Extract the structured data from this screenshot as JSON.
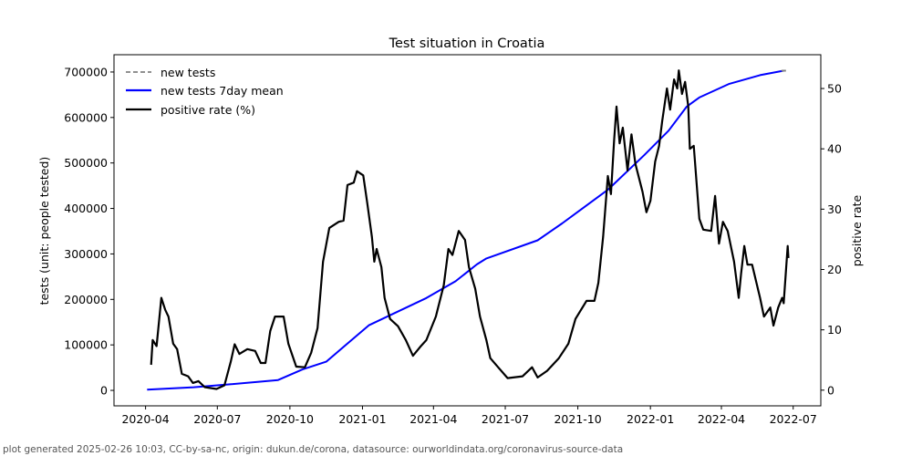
{
  "chart_data": {
    "type": "line",
    "title": "Test situation in Croatia",
    "xlabel": "",
    "ylabel": "tests (unit: people tested)",
    "ylabel_right": "positive rate",
    "x_origin": "2020-04-01",
    "xlim": [
      -40,
      856
    ],
    "ylim": [
      -34000,
      738000
    ],
    "ylim_right": [
      -2.6,
      55.6
    ],
    "x_ticks": [
      {
        "day": 0,
        "label": "2020-04"
      },
      {
        "day": 91,
        "label": "2020-07"
      },
      {
        "day": 183,
        "label": "2020-10"
      },
      {
        "day": 275,
        "label": "2021-01"
      },
      {
        "day": 365,
        "label": "2021-04"
      },
      {
        "day": 456,
        "label": "2021-07"
      },
      {
        "day": 548,
        "label": "2021-10"
      },
      {
        "day": 640,
        "label": "2022-01"
      },
      {
        "day": 730,
        "label": "2022-04"
      },
      {
        "day": 821,
        "label": "2022-07"
      }
    ],
    "y_ticks": [
      "0",
      "100000",
      "200000",
      "300000",
      "400000",
      "500000",
      "600000",
      "700000"
    ],
    "y_ticks_right": [
      "0",
      "10",
      "20",
      "30",
      "40",
      "50"
    ],
    "legend_position": "top-left",
    "grid": false,
    "series": [
      {
        "name": "new tests",
        "axis": "left",
        "color": "#808080",
        "style": "dashed",
        "points": [
          [
            806,
            703000
          ],
          [
            812,
            703000
          ]
        ]
      },
      {
        "name": "new tests 7day mean",
        "axis": "left",
        "color": "#0000ff",
        "style": "solid",
        "points": [
          [
            2,
            1400
          ],
          [
            61,
            7000
          ],
          [
            102,
            12600
          ],
          [
            168,
            22700
          ],
          [
            199,
            46000
          ],
          [
            229,
            63000
          ],
          [
            283,
            143000
          ],
          [
            356,
            203000
          ],
          [
            393,
            240000
          ],
          [
            420,
            277000
          ],
          [
            432,
            290000
          ],
          [
            497,
            330000
          ],
          [
            528,
            367000
          ],
          [
            586,
            441000
          ],
          [
            632,
            517000
          ],
          [
            663,
            571000
          ],
          [
            686,
            624000
          ],
          [
            702,
            644000
          ],
          [
            740,
            674000
          ],
          [
            779,
            693000
          ],
          [
            809,
            703000
          ]
        ]
      },
      {
        "name": "positive rate (%)",
        "axis": "right",
        "color": "#000000",
        "style": "solid",
        "points": [
          [
            7,
            4.2
          ],
          [
            9,
            8.3
          ],
          [
            14,
            7.3
          ],
          [
            17,
            11.3
          ],
          [
            20,
            15.3
          ],
          [
            25,
            13.3
          ],
          [
            29,
            12.2
          ],
          [
            35,
            7.7
          ],
          [
            40,
            6.8
          ],
          [
            46,
            2.7
          ],
          [
            54,
            2.3
          ],
          [
            60,
            1.2
          ],
          [
            67,
            1.5
          ],
          [
            75,
            0.5
          ],
          [
            90,
            0.2
          ],
          [
            100,
            0.8
          ],
          [
            108,
            4.7
          ],
          [
            113,
            7.6
          ],
          [
            119,
            6.0
          ],
          [
            129,
            6.8
          ],
          [
            139,
            6.5
          ],
          [
            146,
            4.5
          ],
          [
            152,
            4.5
          ],
          [
            158,
            9.8
          ],
          [
            164,
            12.2
          ],
          [
            175,
            12.2
          ],
          [
            181,
            7.7
          ],
          [
            191,
            3.9
          ],
          [
            202,
            3.8
          ],
          [
            210,
            6.2
          ],
          [
            218,
            10.3
          ],
          [
            225,
            21.3
          ],
          [
            233,
            26.9
          ],
          [
            245,
            27.9
          ],
          [
            251,
            28.1
          ],
          [
            256,
            34.0
          ],
          [
            264,
            34.4
          ],
          [
            268,
            36.3
          ],
          [
            276,
            35.6
          ],
          [
            281,
            31.0
          ],
          [
            287,
            25.4
          ],
          [
            290,
            21.3
          ],
          [
            293,
            23.4
          ],
          [
            299,
            20.4
          ],
          [
            303,
            15.3
          ],
          [
            310,
            11.8
          ],
          [
            320,
            10.6
          ],
          [
            330,
            8.3
          ],
          [
            339,
            5.7
          ],
          [
            349,
            7.3
          ],
          [
            356,
            8.3
          ],
          [
            368,
            12.2
          ],
          [
            378,
            17.4
          ],
          [
            384,
            23.4
          ],
          [
            389,
            22.4
          ],
          [
            397,
            26.4
          ],
          [
            405,
            24.9
          ],
          [
            410,
            20.4
          ],
          [
            418,
            16.8
          ],
          [
            424,
            12.2
          ],
          [
            432,
            8.3
          ],
          [
            437,
            5.3
          ],
          [
            447,
            3.8
          ],
          [
            459,
            2.0
          ],
          [
            478,
            2.3
          ],
          [
            490,
            3.8
          ],
          [
            497,
            2.1
          ],
          [
            509,
            3.2
          ],
          [
            524,
            5.3
          ],
          [
            536,
            7.7
          ],
          [
            545,
            11.8
          ],
          [
            559,
            14.8
          ],
          [
            569,
            14.8
          ],
          [
            574,
            17.8
          ],
          [
            580,
            25.4
          ],
          [
            586,
            35.5
          ],
          [
            590,
            32.5
          ],
          [
            594,
            41.5
          ],
          [
            597,
            47.0
          ],
          [
            601,
            40.9
          ],
          [
            605,
            43.5
          ],
          [
            611,
            36.4
          ],
          [
            616,
            42.4
          ],
          [
            621,
            37.5
          ],
          [
            630,
            32.9
          ],
          [
            635,
            29.5
          ],
          [
            640,
            31.4
          ],
          [
            646,
            37.9
          ],
          [
            651,
            40.5
          ],
          [
            655,
            44.6
          ],
          [
            661,
            50.0
          ],
          [
            665,
            46.5
          ],
          [
            670,
            51.5
          ],
          [
            674,
            50.0
          ],
          [
            676,
            53.0
          ],
          [
            680,
            49.1
          ],
          [
            684,
            51.1
          ],
          [
            688,
            47.0
          ],
          [
            690,
            40.0
          ],
          [
            695,
            40.5
          ],
          [
            702,
            28.4
          ],
          [
            707,
            26.6
          ],
          [
            717,
            26.4
          ],
          [
            722,
            32.2
          ],
          [
            727,
            24.3
          ],
          [
            732,
            27.9
          ],
          [
            738,
            26.4
          ],
          [
            746,
            21.3
          ],
          [
            752,
            15.3
          ],
          [
            755,
            19.3
          ],
          [
            759,
            23.9
          ],
          [
            763,
            20.8
          ],
          [
            769,
            20.8
          ],
          [
            779,
            15.3
          ],
          [
            784,
            12.2
          ],
          [
            792,
            13.7
          ],
          [
            796,
            10.7
          ],
          [
            802,
            13.7
          ],
          [
            807,
            15.3
          ],
          [
            809,
            14.4
          ],
          [
            814,
            23.9
          ],
          [
            815,
            21.9
          ]
        ]
      }
    ]
  },
  "footer": "plot generated 2025-02-26 10:03, CC-by-sa-nc, origin: dukun.de/corona, datasource: ourworldindata.org/coronavirus-source-data"
}
